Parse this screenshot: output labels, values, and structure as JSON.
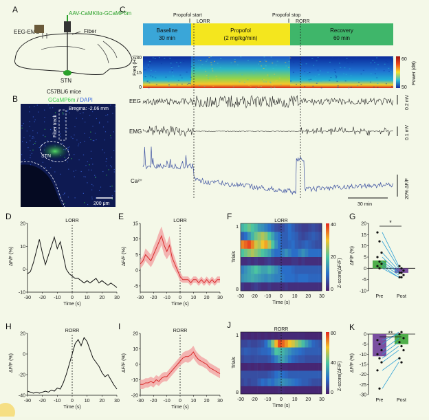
{
  "panels": {
    "A": {
      "letter": "A",
      "virus": "AAV-CaMKIIα-GCaMP6m",
      "eeg_emg": "EEG-EMG",
      "fiber": "Fiber",
      "stn": "STN",
      "mice": "C57BL/6 mice"
    },
    "B": {
      "letter": "B",
      "stain_gcamp": "GCaMP6m",
      "stain_sep": " / ",
      "stain_dapi": "DAPI",
      "bregma": "Bregma: -2.06 mm",
      "fiber_track": "Fiber track",
      "stn": "STN",
      "scale": "200 μm"
    },
    "C": {
      "letter": "C",
      "propofol_start": "Propofol start",
      "lorr": "LORR",
      "propofol_stop": "Propofol stop",
      "rorr": "RORR",
      "baseline_label": "Baseline",
      "baseline_time": "30 min",
      "propofol_label": "Propofol",
      "propofol_dose": "(2 mg/kg/min)",
      "recovery_label": "Recovery",
      "recovery_time": "60 min",
      "freq_label": "Freq (Hz)",
      "freq_ticks": [
        "30",
        "15",
        "0"
      ],
      "power_label": "Power (dB)",
      "power_ticks": [
        "60",
        "50"
      ],
      "eeg": "EEG",
      "eeg_scale": "0.2 mV",
      "emg": "EMG",
      "emg_scale": "0.1 mV",
      "ca": "Ca²⁺",
      "ca_scale": "20% ΔF/F",
      "time_scale": "30 min"
    },
    "D": {
      "letter": "D",
      "event": "LORR",
      "ylabel": "ΔF/F (%)",
      "xlabel": "Time (s)",
      "yticks": [
        "20",
        "10",
        "0",
        "-10"
      ],
      "xticks": [
        "-30",
        "-20",
        "-10",
        "0",
        "10",
        "20",
        "30"
      ]
    },
    "E": {
      "letter": "E",
      "event": "LORR",
      "ylabel": "ΔF/F (%)",
      "xlabel": "Time (s)",
      "yticks": [
        "15",
        "10",
        "5",
        "0",
        "-5"
      ],
      "xticks": [
        "-30",
        "-20",
        "-10",
        "0",
        "10",
        "20",
        "30"
      ]
    },
    "F": {
      "letter": "F",
      "event": "LORR",
      "ylabel": "Trials",
      "xlabel": "Time (s)",
      "row_first": "1",
      "row_last": "8",
      "cbar_label": "Z-score(ΔF/F)",
      "cbar_ticks": [
        "40",
        "20",
        "0"
      ],
      "xticks": [
        "-30",
        "-20",
        "-10",
        "0",
        "10",
        "20",
        "30"
      ]
    },
    "G": {
      "letter": "G",
      "sig": "*",
      "ylabel": "ΔF/F (%)",
      "yticks": [
        "20",
        "15",
        "10",
        "5",
        "0",
        "-5",
        "-10"
      ],
      "xticks": [
        "Pre",
        "Post"
      ]
    },
    "H": {
      "letter": "H",
      "event": "RORR",
      "ylabel": "ΔF/F (%)",
      "xlabel": "Time (s)",
      "yticks": [
        "20",
        "0",
        "-20",
        "-40"
      ],
      "xticks": [
        "-30",
        "-20",
        "-10",
        "0",
        "10",
        "20",
        "30"
      ]
    },
    "I": {
      "letter": "I",
      "event": "RORR",
      "ylabel": "ΔF/F (%)",
      "xlabel": "Time (s)",
      "yticks": [
        "20",
        "10",
        "0",
        "-10",
        "-20"
      ],
      "xticks": [
        "-30",
        "-20",
        "-10",
        "0",
        "10",
        "20",
        "30"
      ]
    },
    "J": {
      "letter": "J",
      "event": "RORR",
      "ylabel": "Trials",
      "xlabel": "Time (s)",
      "row_first": "1",
      "row_last": "8",
      "cbar_label": "Z-score(ΔF/F)",
      "cbar_ticks": [
        "80",
        "40",
        "0"
      ],
      "xticks": [
        "-30",
        "-20",
        "-10",
        "0",
        "10",
        "20",
        "30"
      ]
    },
    "K": {
      "letter": "K",
      "sig": "**",
      "ylabel": "ΔF/F (%)",
      "yticks": [
        "0",
        "-5",
        "-10",
        "-15",
        "-20",
        "-25",
        "-30"
      ],
      "xticks": [
        "Pre",
        "Post"
      ]
    }
  },
  "colors": {
    "baseline": "#3aa6d8",
    "propofol": "#f4e61e",
    "recovery": "#3fb66a",
    "mean_trace": "#d92b2b",
    "sem_band": "#f2a3a3",
    "ca_trace": "#3a4fa0",
    "bar_pre_G": "#4fae4a",
    "bar_post_G": "#7a4fa0",
    "bar_pre_K": "#7a4fa0",
    "bar_post_K": "#4fae4a",
    "paired_line": "#2a9fd6"
  },
  "chart_data": [
    {
      "id": "D",
      "type": "line",
      "x": [
        -30,
        -28,
        -26,
        -24,
        -22,
        -20,
        -18,
        -16,
        -14,
        -12,
        -10,
        -8,
        -6,
        -4,
        -2,
        0,
        2,
        4,
        6,
        8,
        10,
        12,
        14,
        16,
        18,
        20,
        22,
        24,
        26,
        28,
        30
      ],
      "values": [
        -2,
        -1,
        3,
        8,
        13,
        7,
        2,
        6,
        10,
        14,
        9,
        12,
        6,
        0,
        -2,
        -3,
        -4,
        -4,
        -5,
        -6,
        -5,
        -6,
        -5,
        -4,
        -6,
        -5,
        -6,
        -7,
        -6,
        -7,
        -8
      ],
      "ylim": [
        -10,
        20
      ],
      "xlim": [
        -30,
        30
      ]
    },
    {
      "id": "E",
      "type": "line",
      "x": [
        -30,
        -28,
        -26,
        -24,
        -22,
        -20,
        -18,
        -16,
        -14,
        -12,
        -10,
        -8,
        -6,
        -4,
        -2,
        0,
        2,
        4,
        6,
        8,
        10,
        12,
        14,
        16,
        18,
        20,
        22,
        24,
        26,
        28,
        30
      ],
      "values": [
        2,
        3,
        5,
        4,
        3,
        5,
        7,
        9,
        11,
        8,
        6,
        8,
        4,
        2,
        0,
        -2,
        -3,
        -3,
        -3,
        -4,
        -3,
        -3,
        -4,
        -3,
        -4,
        -3,
        -4,
        -3,
        -4,
        -3,
        -3
      ],
      "sem": [
        1.5,
        1.5,
        2,
        2,
        2,
        2.5,
        2.5,
        3,
        3,
        3,
        2.5,
        3,
        2.5,
        2,
        1.5,
        1.5,
        1,
        1,
        1,
        1,
        1,
        1,
        1,
        1,
        1,
        1,
        1,
        1,
        1,
        1,
        1
      ],
      "ylim": [
        -7,
        15
      ],
      "xlim": [
        -30,
        30
      ]
    },
    {
      "id": "F",
      "type": "heatmap",
      "rows": [
        [
          18,
          20,
          22,
          20,
          18,
          15,
          14,
          12,
          10,
          8,
          6,
          5,
          6,
          8,
          10,
          8,
          6,
          5,
          4,
          4,
          5,
          6,
          5,
          4
        ],
        [
          8,
          10,
          14,
          18,
          22,
          24,
          26,
          24,
          20,
          16,
          12,
          10,
          8,
          8,
          10,
          9,
          8,
          6,
          5,
          6,
          7,
          8,
          7,
          6
        ],
        [
          34,
          36,
          38,
          34,
          28,
          26,
          30,
          32,
          26,
          20,
          14,
          10,
          8,
          8,
          9,
          10,
          8,
          7,
          8,
          9,
          8,
          7,
          6,
          6
        ],
        [
          20,
          22,
          24,
          26,
          24,
          22,
          20,
          18,
          16,
          12,
          10,
          10,
          12,
          14,
          12,
          10,
          10,
          12,
          14,
          12,
          10,
          10,
          10,
          10
        ],
        [
          2,
          2,
          3,
          2,
          3,
          2,
          2,
          3,
          4,
          3,
          2,
          2,
          2,
          2,
          2,
          3,
          3,
          2,
          3,
          2,
          2,
          2,
          2,
          2
        ],
        [
          12,
          14,
          16,
          18,
          20,
          18,
          16,
          16,
          18,
          16,
          14,
          12,
          10,
          10,
          10,
          9,
          8,
          8,
          8,
          8,
          8,
          8,
          8,
          8
        ],
        [
          14,
          15,
          16,
          17,
          16,
          15,
          14,
          13,
          14,
          13,
          12,
          12,
          11,
          10,
          10,
          10,
          9,
          10,
          10,
          10,
          9,
          9,
          9,
          9
        ],
        [
          3,
          2,
          2,
          3,
          4,
          3,
          2,
          2,
          3,
          2,
          2,
          2,
          2,
          3,
          2,
          2,
          2,
          2,
          2,
          2,
          2,
          2,
          2,
          2
        ]
      ],
      "zlim": [
        0,
        40
      ],
      "xlim": [
        -30,
        30
      ]
    },
    {
      "id": "G",
      "type": "bar",
      "categories": [
        "Pre",
        "Post"
      ],
      "values": [
        3.5,
        -2
      ],
      "points_pre": [
        16,
        12,
        7,
        5,
        3,
        2,
        1,
        0
      ],
      "points_post": [
        1,
        0,
        -1,
        -2,
        -2,
        -3,
        -4,
        -4
      ],
      "ylim": [
        -10,
        20
      ]
    },
    {
      "id": "H",
      "type": "line",
      "x": [
        -30,
        -28,
        -26,
        -24,
        -22,
        -20,
        -18,
        -16,
        -14,
        -12,
        -10,
        -8,
        -6,
        -4,
        -2,
        0,
        2,
        4,
        6,
        8,
        10,
        12,
        14,
        16,
        18,
        20,
        22,
        24,
        26,
        28,
        30
      ],
      "values": [
        -36,
        -37,
        -38,
        -37,
        -38,
        -37,
        -36,
        -37,
        -35,
        -36,
        -33,
        -34,
        -28,
        -20,
        -10,
        0,
        10,
        14,
        8,
        16,
        12,
        4,
        -4,
        -8,
        -12,
        -18,
        -22,
        -20,
        -25,
        -30,
        -34
      ],
      "ylim": [
        -40,
        20
      ],
      "xlim": [
        -30,
        30
      ]
    },
    {
      "id": "I",
      "type": "line",
      "x": [
        -30,
        -28,
        -26,
        -24,
        -22,
        -20,
        -18,
        -16,
        -14,
        -12,
        -10,
        -8,
        -6,
        -4,
        -2,
        0,
        2,
        4,
        6,
        8,
        10,
        12,
        14,
        16,
        18,
        20,
        22,
        24,
        26,
        28,
        30
      ],
      "values": [
        -13,
        -13,
        -12,
        -12,
        -11,
        -12,
        -10,
        -11,
        -9,
        -8,
        -8,
        -6,
        -4,
        -2,
        0,
        2,
        4,
        5,
        5,
        6,
        8,
        5,
        3,
        2,
        1,
        0,
        -2,
        -3,
        -4,
        -5,
        -6
      ],
      "sem": [
        3,
        3,
        3,
        3,
        3,
        3,
        3,
        3,
        3,
        3,
        3,
        3,
        3,
        3,
        3,
        3,
        3.5,
        3.5,
        4,
        4,
        4,
        3.5,
        3.5,
        3,
        3,
        3,
        3,
        3,
        3,
        3,
        3
      ],
      "ylim": [
        -20,
        20
      ],
      "xlim": [
        -30,
        30
      ]
    },
    {
      "id": "J",
      "type": "heatmap",
      "rows": [
        [
          2,
          3,
          2,
          3,
          2,
          3,
          2,
          3,
          2,
          3,
          2,
          3,
          3,
          3,
          3,
          3,
          3,
          3,
          3,
          2,
          2,
          2,
          2,
          2
        ],
        [
          10,
          10,
          12,
          10,
          10,
          12,
          14,
          20,
          30,
          46,
          62,
          76,
          72,
          66,
          60,
          56,
          50,
          44,
          38,
          30,
          24,
          18,
          16,
          14
        ],
        [
          14,
          16,
          15,
          14,
          14,
          16,
          18,
          18,
          20,
          28,
          40,
          38,
          36,
          32,
          28,
          24,
          22,
          20,
          18,
          16,
          16,
          16,
          16,
          16
        ],
        [
          10,
          12,
          12,
          11,
          12,
          12,
          12,
          12,
          14,
          18,
          24,
          30,
          32,
          28,
          22,
          18,
          16,
          14,
          14,
          12,
          12,
          12,
          12,
          12
        ],
        [
          2,
          2,
          3,
          2,
          3,
          2,
          3,
          2,
          2,
          3,
          4,
          4,
          3,
          3,
          2,
          2,
          2,
          2,
          2,
          2,
          2,
          2,
          2,
          2
        ],
        [
          12,
          12,
          12,
          12,
          12,
          12,
          12,
          12,
          14,
          16,
          20,
          22,
          20,
          18,
          16,
          16,
          16,
          16,
          16,
          16,
          16,
          16,
          16,
          16
        ],
        [
          10,
          12,
          10,
          12,
          12,
          16,
          20,
          18,
          22,
          20,
          24,
          26,
          28,
          26,
          24,
          22,
          20,
          18,
          16,
          16,
          14,
          12,
          12,
          12
        ],
        [
          2,
          2,
          2,
          2,
          2,
          2,
          2,
          2,
          2,
          2,
          2,
          3,
          3,
          2,
          2,
          2,
          2,
          2,
          2,
          2,
          2,
          2,
          2,
          2
        ]
      ],
      "zlim": [
        0,
        80
      ],
      "xlim": [
        -30,
        30
      ]
    },
    {
      "id": "K",
      "type": "bar",
      "categories": [
        "Pre",
        "Post"
      ],
      "values": [
        -11,
        -5
      ],
      "points_pre": [
        -3,
        -5,
        -8,
        -10,
        -12,
        -14,
        -18,
        -27
      ],
      "points_post": [
        0,
        1,
        -2,
        -4,
        -6,
        -8,
        -12,
        -14
      ],
      "ylim": [
        -30,
        0
      ]
    }
  ]
}
